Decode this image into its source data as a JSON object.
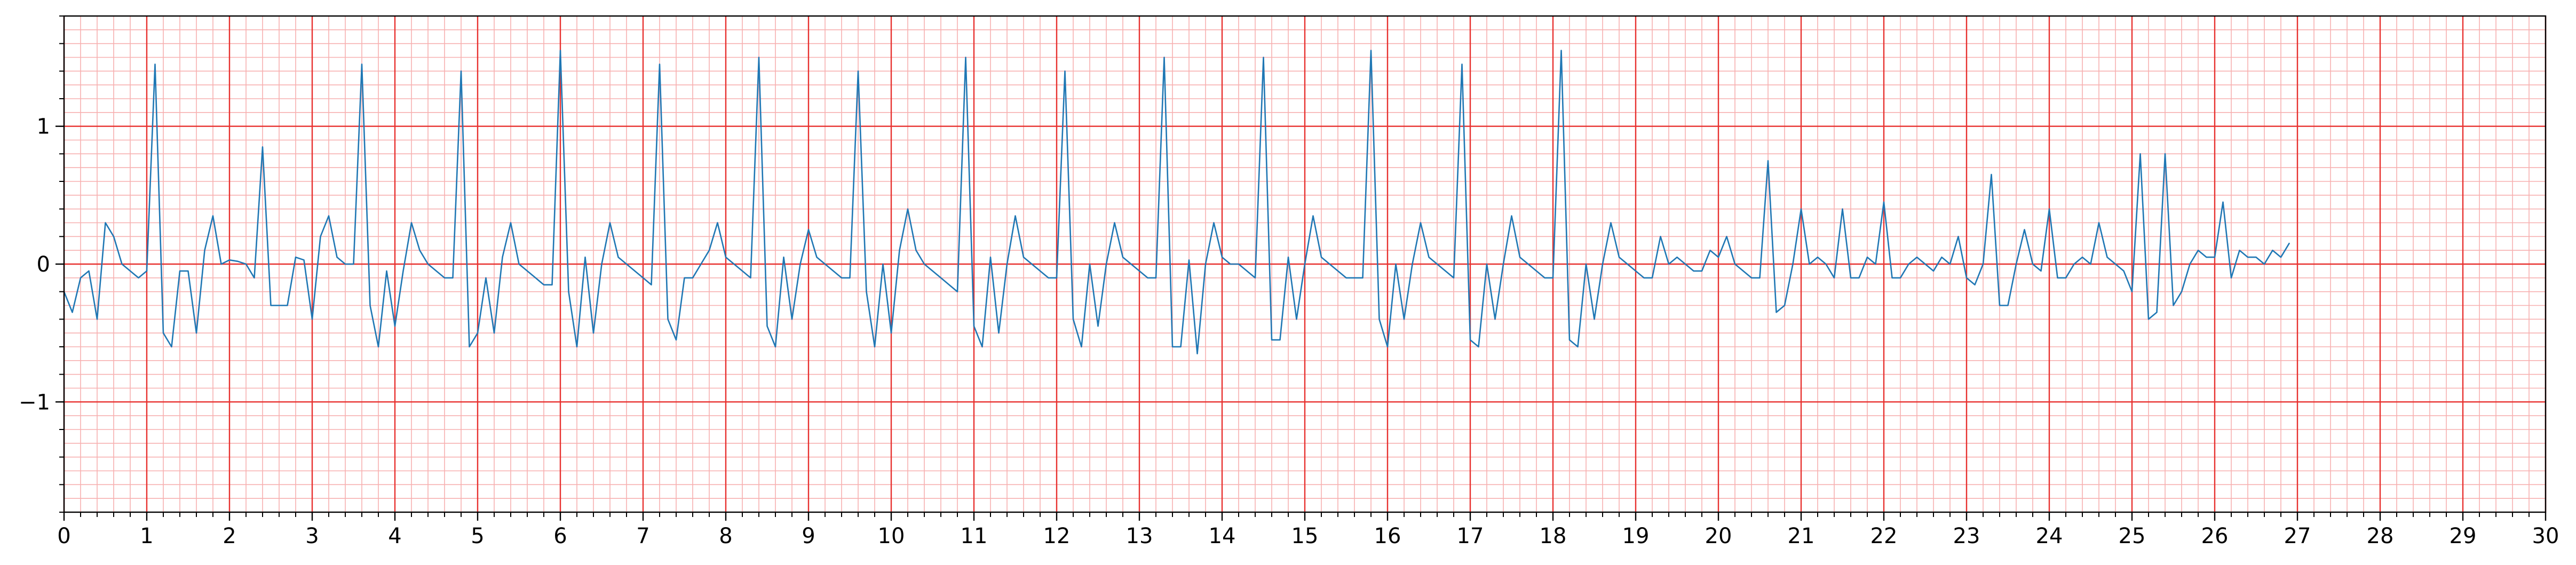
{
  "chart_data": {
    "type": "line",
    "title": "",
    "xlabel": "",
    "ylabel": "",
    "xlim": [
      0,
      30
    ],
    "ylim": [
      -1.8,
      1.8
    ],
    "x_ticks": [
      0,
      1,
      2,
      3,
      4,
      5,
      6,
      7,
      8,
      9,
      10,
      11,
      12,
      13,
      14,
      15,
      16,
      17,
      18,
      19,
      20,
      21,
      22,
      23,
      24,
      25,
      26,
      27,
      28,
      29,
      30
    ],
    "x_tick_labels": [
      "0",
      "1",
      "2",
      "3",
      "4",
      "5",
      "6",
      "7",
      "8",
      "9",
      "10",
      "11",
      "12",
      "13",
      "14",
      "15",
      "16",
      "17",
      "18",
      "19",
      "20",
      "21",
      "22",
      "23",
      "24",
      "25",
      "26",
      "27",
      "28",
      "29",
      "30"
    ],
    "y_ticks": [
      -1,
      0,
      1
    ],
    "y_tick_labels": [
      "−1",
      "0",
      "1"
    ],
    "grid": {
      "major": true,
      "minor": true,
      "major_x_step": 1,
      "minor_x_step": 0.2,
      "major_y_step": 1,
      "minor_y_step": 0.1
    },
    "colors": {
      "line": "#1f77b4",
      "major_grid": "#e8312f",
      "minor_grid": "#f7b0b0",
      "axes": "#000000"
    },
    "series": [
      {
        "sample_rate_hz": 10,
        "x_start": 0,
        "values": [
          -0.2,
          -0.35,
          -0.1,
          -0.05,
          -0.4,
          0.3,
          0.2,
          0.0,
          -0.05,
          -0.1,
          -0.05,
          1.45,
          -0.5,
          -0.6,
          -0.05,
          -0.05,
          -0.5,
          0.1,
          0.35,
          0.0,
          0.03,
          0.02,
          0.0,
          -0.1,
          0.85,
          -0.3,
          -0.3,
          -0.3,
          0.05,
          0.03,
          -0.4,
          0.2,
          0.35,
          0.05,
          0.0,
          0.0,
          1.45,
          -0.3,
          -0.6,
          -0.05,
          -0.45,
          -0.05,
          0.3,
          0.1,
          0.0,
          -0.05,
          -0.1,
          -0.1,
          1.4,
          -0.6,
          -0.5,
          -0.1,
          -0.5,
          0.05,
          0.3,
          0.0,
          -0.05,
          -0.1,
          -0.15,
          -0.15,
          1.55,
          -0.2,
          -0.6,
          0.05,
          -0.5,
          0.0,
          0.3,
          0.05,
          0.0,
          -0.05,
          -0.1,
          -0.15,
          1.45,
          -0.4,
          -0.55,
          -0.1,
          -0.1,
          0.0,
          0.1,
          0.3,
          0.05,
          0.0,
          -0.05,
          -0.1,
          1.5,
          -0.45,
          -0.6,
          0.05,
          -0.4,
          0.0,
          0.25,
          0.05,
          0.0,
          -0.05,
          -0.1,
          -0.1,
          1.4,
          -0.2,
          -0.6,
          0.0,
          -0.5,
          0.1,
          0.4,
          0.1,
          0.0,
          -0.05,
          -0.1,
          -0.15,
          -0.2,
          1.5,
          -0.45,
          -0.6,
          0.05,
          -0.5,
          0.0,
          0.35,
          0.05,
          0.0,
          -0.05,
          -0.1,
          -0.1,
          1.4,
          -0.4,
          -0.6,
          0.0,
          -0.45,
          0.0,
          0.3,
          0.05,
          0.0,
          -0.05,
          -0.1,
          -0.1,
          1.5,
          -0.6,
          -0.6,
          0.03,
          -0.65,
          0.0,
          0.3,
          0.05,
          0.0,
          0.0,
          -0.05,
          -0.1,
          1.5,
          -0.55,
          -0.55,
          0.05,
          -0.4,
          0.0,
          0.35,
          0.05,
          0.0,
          -0.05,
          -0.1,
          -0.1,
          -0.1,
          1.55,
          -0.4,
          -0.6,
          0.0,
          -0.4,
          0.0,
          0.3,
          0.05,
          0.0,
          -0.05,
          -0.1,
          1.45,
          -0.55,
          -0.6,
          0.0,
          -0.4,
          0.0,
          0.35,
          0.05,
          0.0,
          -0.05,
          -0.1,
          -0.1,
          1.55,
          -0.55,
          -0.6,
          0.0,
          -0.4,
          0.0,
          0.3,
          0.05,
          0.0,
          -0.05,
          -0.1,
          -0.1,
          0.2,
          0.0,
          0.05,
          0.0,
          -0.05,
          -0.05,
          0.1,
          0.05,
          0.2,
          0.0,
          -0.05,
          -0.1,
          -0.1,
          0.75,
          -0.35,
          -0.3,
          0.0,
          0.4,
          0.0,
          0.05,
          0.0,
          -0.1,
          0.4,
          -0.1,
          -0.1,
          0.05,
          0.0,
          0.45,
          -0.1,
          -0.1,
          0.0,
          0.05,
          0.0,
          -0.05,
          0.05,
          0.0,
          0.2,
          -0.1,
          -0.15,
          0.0,
          0.65,
          -0.3,
          -0.3,
          0.0,
          0.25,
          0.0,
          -0.05,
          0.4,
          -0.1,
          -0.1,
          0.0,
          0.05,
          0.0,
          0.3,
          0.05,
          0.0,
          -0.05,
          -0.2,
          0.8,
          -0.4,
          -0.35,
          0.8,
          -0.3,
          -0.2,
          0.0,
          0.1,
          0.05,
          0.05,
          0.45,
          -0.1,
          0.1,
          0.05,
          0.05,
          0.0,
          0.1,
          0.05,
          0.15
        ]
      }
    ]
  }
}
